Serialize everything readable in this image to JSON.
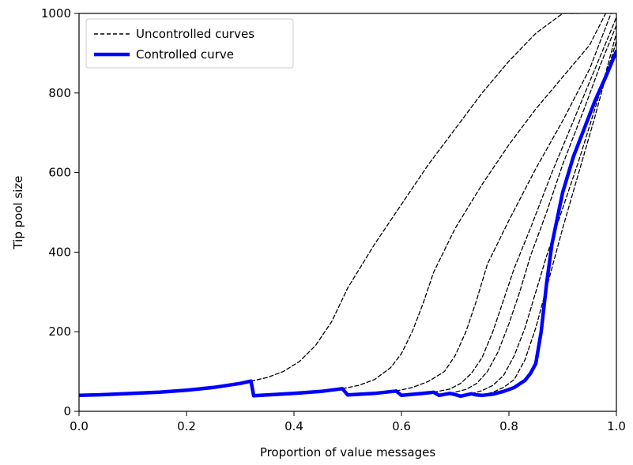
{
  "chart_data": {
    "type": "line",
    "xlabel": "Proportion of value messages",
    "ylabel": "Tip pool size",
    "xlim": [
      0.0,
      1.0
    ],
    "ylim": [
      0,
      1000
    ],
    "x_ticks": [
      "0.0",
      "0.2",
      "0.4",
      "0.6",
      "0.8",
      "1.0"
    ],
    "y_ticks": [
      "0",
      "200",
      "400",
      "600",
      "800",
      "1000"
    ],
    "grid": false,
    "legend": {
      "placement": "top-left",
      "entries": [
        {
          "label": "Uncontrolled curves",
          "style": "dashed",
          "color": "#000000"
        },
        {
          "label": "Controlled curve",
          "style": "solid",
          "color": "#0000ff"
        }
      ]
    },
    "series": [
      {
        "role": "controlled",
        "color": "#0000ff",
        "x": [
          0.0,
          0.05,
          0.1,
          0.15,
          0.2,
          0.25,
          0.3,
          0.32,
          0.325,
          0.35,
          0.4,
          0.45,
          0.49,
          0.5,
          0.55,
          0.59,
          0.6,
          0.64,
          0.66,
          0.67,
          0.69,
          0.7,
          0.71,
          0.73,
          0.74,
          0.75,
          0.77,
          0.79,
          0.81,
          0.83,
          0.84,
          0.85,
          0.86,
          0.87,
          0.88,
          0.9,
          0.92,
          0.94,
          0.96,
          0.98,
          1.0
        ],
        "y": [
          40,
          42,
          45,
          48,
          53,
          60,
          70,
          76,
          39,
          41,
          45,
          50,
          57,
          41,
          45,
          51,
          40,
          45,
          48,
          40,
          45,
          42,
          38,
          44,
          41,
          40,
          43,
          50,
          60,
          78,
          95,
          120,
          200,
          320,
          420,
          550,
          640,
          710,
          780,
          840,
          905
        ]
      },
      {
        "role": "uncontrolled",
        "color": "#000000",
        "x": [
          0.32,
          0.35,
          0.38,
          0.41,
          0.44,
          0.47,
          0.5,
          0.55,
          0.6,
          0.65,
          0.7,
          0.75,
          0.8,
          0.85,
          0.9,
          0.93
        ],
        "y": [
          76,
          85,
          100,
          125,
          165,
          225,
          310,
          420,
          520,
          620,
          710,
          800,
          880,
          950,
          1000,
          1000
        ]
      },
      {
        "role": "uncontrolled",
        "color": "#000000",
        "x": [
          0.49,
          0.52,
          0.55,
          0.58,
          0.6,
          0.62,
          0.64,
          0.66,
          0.7,
          0.75,
          0.8,
          0.85,
          0.9,
          0.95,
          0.98
        ],
        "y": [
          57,
          65,
          80,
          110,
          145,
          200,
          270,
          350,
          460,
          570,
          670,
          760,
          840,
          920,
          1000
        ]
      },
      {
        "role": "uncontrolled",
        "color": "#000000",
        "x": [
          0.59,
          0.62,
          0.65,
          0.68,
          0.7,
          0.72,
          0.74,
          0.76,
          0.8,
          0.85,
          0.9,
          0.95,
          0.99
        ],
        "y": [
          51,
          60,
          75,
          100,
          140,
          200,
          280,
          370,
          480,
          610,
          730,
          860,
          1000
        ]
      },
      {
        "role": "uncontrolled",
        "color": "#000000",
        "x": [
          0.66,
          0.69,
          0.71,
          0.73,
          0.75,
          0.77,
          0.79,
          0.81,
          0.84,
          0.88,
          0.92,
          0.96,
          1.0
        ],
        "y": [
          48,
          56,
          70,
          95,
          135,
          200,
          280,
          360,
          460,
          600,
          730,
          860,
          990
        ]
      },
      {
        "role": "uncontrolled",
        "color": "#000000",
        "x": [
          0.69,
          0.72,
          0.74,
          0.76,
          0.78,
          0.8,
          0.82,
          0.84,
          0.87,
          0.9,
          0.94,
          0.97,
          1.0
        ],
        "y": [
          45,
          55,
          70,
          100,
          150,
          220,
          300,
          390,
          500,
          620,
          760,
          870,
          970
        ]
      },
      {
        "role": "uncontrolled",
        "color": "#000000",
        "x": [
          0.73,
          0.75,
          0.77,
          0.79,
          0.81,
          0.83,
          0.85,
          0.87,
          0.9,
          0.93,
          0.96,
          0.98,
          1.0
        ],
        "y": [
          44,
          52,
          65,
          90,
          140,
          210,
          300,
          390,
          510,
          630,
          760,
          850,
          950
        ]
      },
      {
        "role": "uncontrolled",
        "color": "#000000",
        "x": [
          0.75,
          0.77,
          0.79,
          0.81,
          0.83,
          0.85,
          0.87,
          0.9,
          0.93,
          0.96,
          0.98,
          1.0
        ],
        "y": [
          40,
          48,
          60,
          80,
          130,
          210,
          310,
          460,
          600,
          740,
          840,
          930
        ]
      }
    ]
  }
}
